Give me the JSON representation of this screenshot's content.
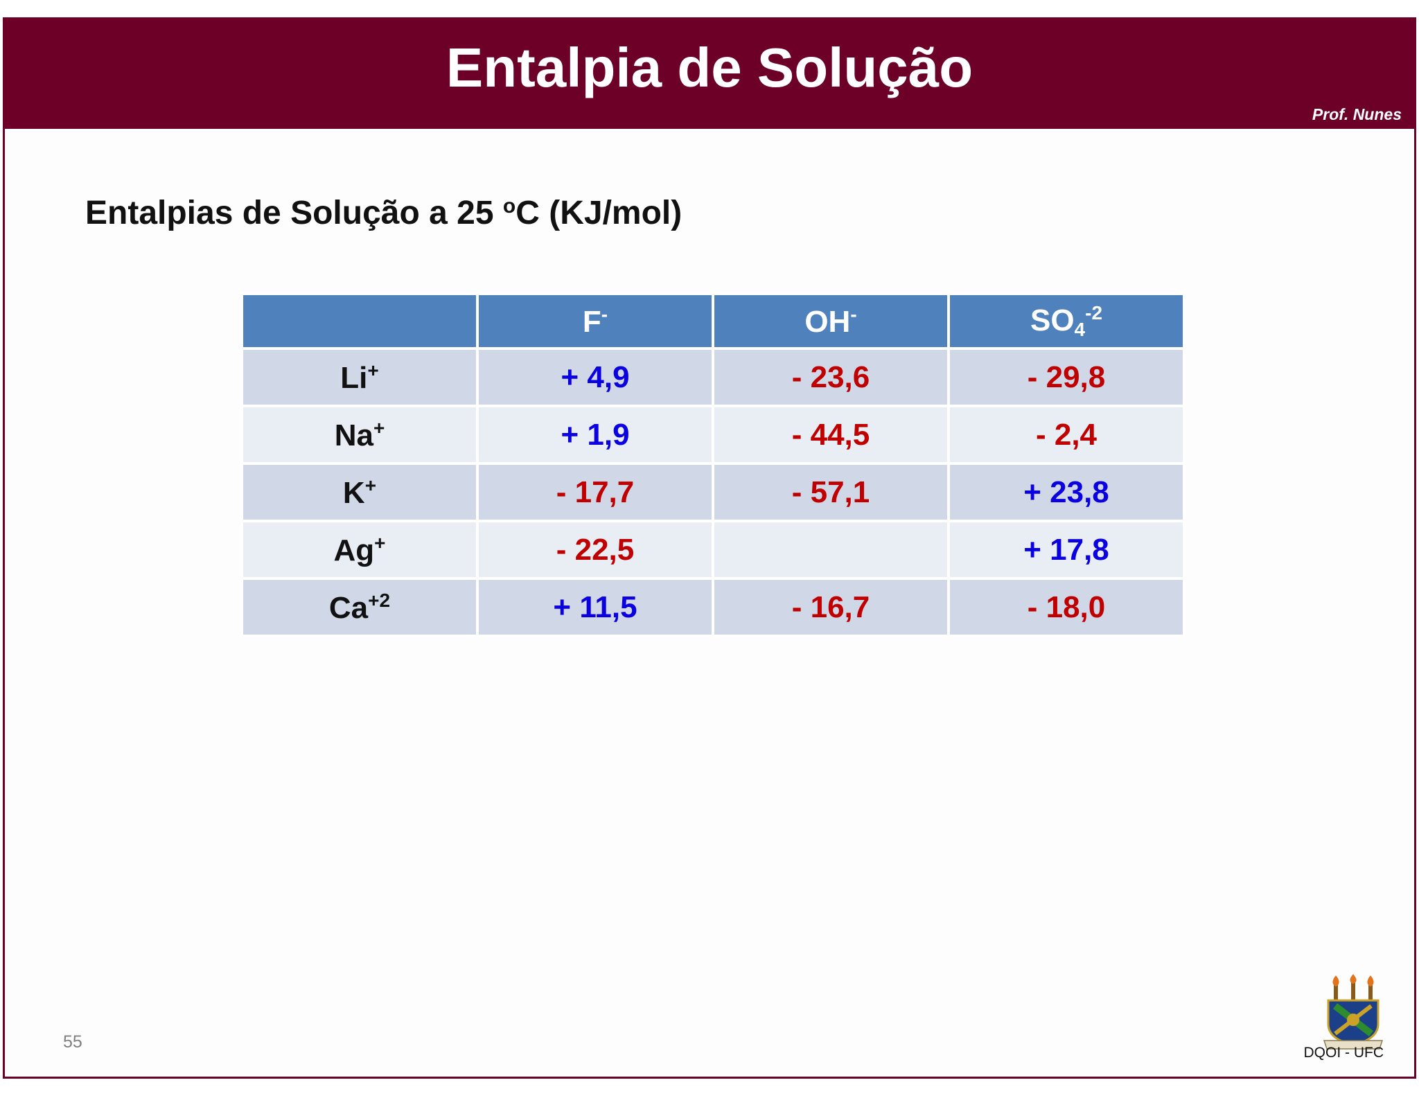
{
  "header": {
    "title": "Entalpia de Solução",
    "author": "Prof. Nunes",
    "bg_color": "#6d0027"
  },
  "subtitle": {
    "text_before": "Entalpias de Solução a 25 ",
    "degree": "o",
    "text_after": "C (KJ/mol)"
  },
  "table": {
    "columns": [
      {
        "base": "F",
        "sup": "-",
        "sub": ""
      },
      {
        "base": "OH",
        "sup": "-",
        "sub": ""
      },
      {
        "base": "SO",
        "sub": "4",
        "sup": "-2"
      }
    ],
    "rows": [
      {
        "ion": "Li",
        "charge": "+",
        "values": [
          {
            "text": "+ 4,9",
            "sign": "pos"
          },
          {
            "text": "- 23,6",
            "sign": "neg"
          },
          {
            "text": "- 29,8",
            "sign": "neg"
          }
        ]
      },
      {
        "ion": "Na",
        "charge": "+",
        "values": [
          {
            "text": "+ 1,9",
            "sign": "pos"
          },
          {
            "text": "- 44,5",
            "sign": "neg"
          },
          {
            "text": "- 2,4",
            "sign": "neg"
          }
        ]
      },
      {
        "ion": "K",
        "charge": "+",
        "values": [
          {
            "text": "- 17,7",
            "sign": "neg"
          },
          {
            "text": "- 57,1",
            "sign": "neg"
          },
          {
            "text": "+ 23,8",
            "sign": "pos"
          }
        ]
      },
      {
        "ion": "Ag",
        "charge": "+",
        "values": [
          {
            "text": "- 22,5",
            "sign": "neg"
          },
          {
            "text": "",
            "sign": "none"
          },
          {
            "text": "+ 17,8",
            "sign": "pos"
          }
        ]
      },
      {
        "ion": "Ca",
        "charge": "+2",
        "values": [
          {
            "text": "+ 11,5",
            "sign": "pos"
          },
          {
            "text": "- 16,7",
            "sign": "neg"
          },
          {
            "text": "- 18,0",
            "sign": "neg"
          }
        ]
      }
    ],
    "colors": {
      "positive": "#0a00e0",
      "negative": "#c00000",
      "header": "#4f81bd"
    }
  },
  "footer": {
    "page_number": "55",
    "department": "DQOI - UFC",
    "logo_icon": "ufc-coat-of-arms-icon"
  }
}
